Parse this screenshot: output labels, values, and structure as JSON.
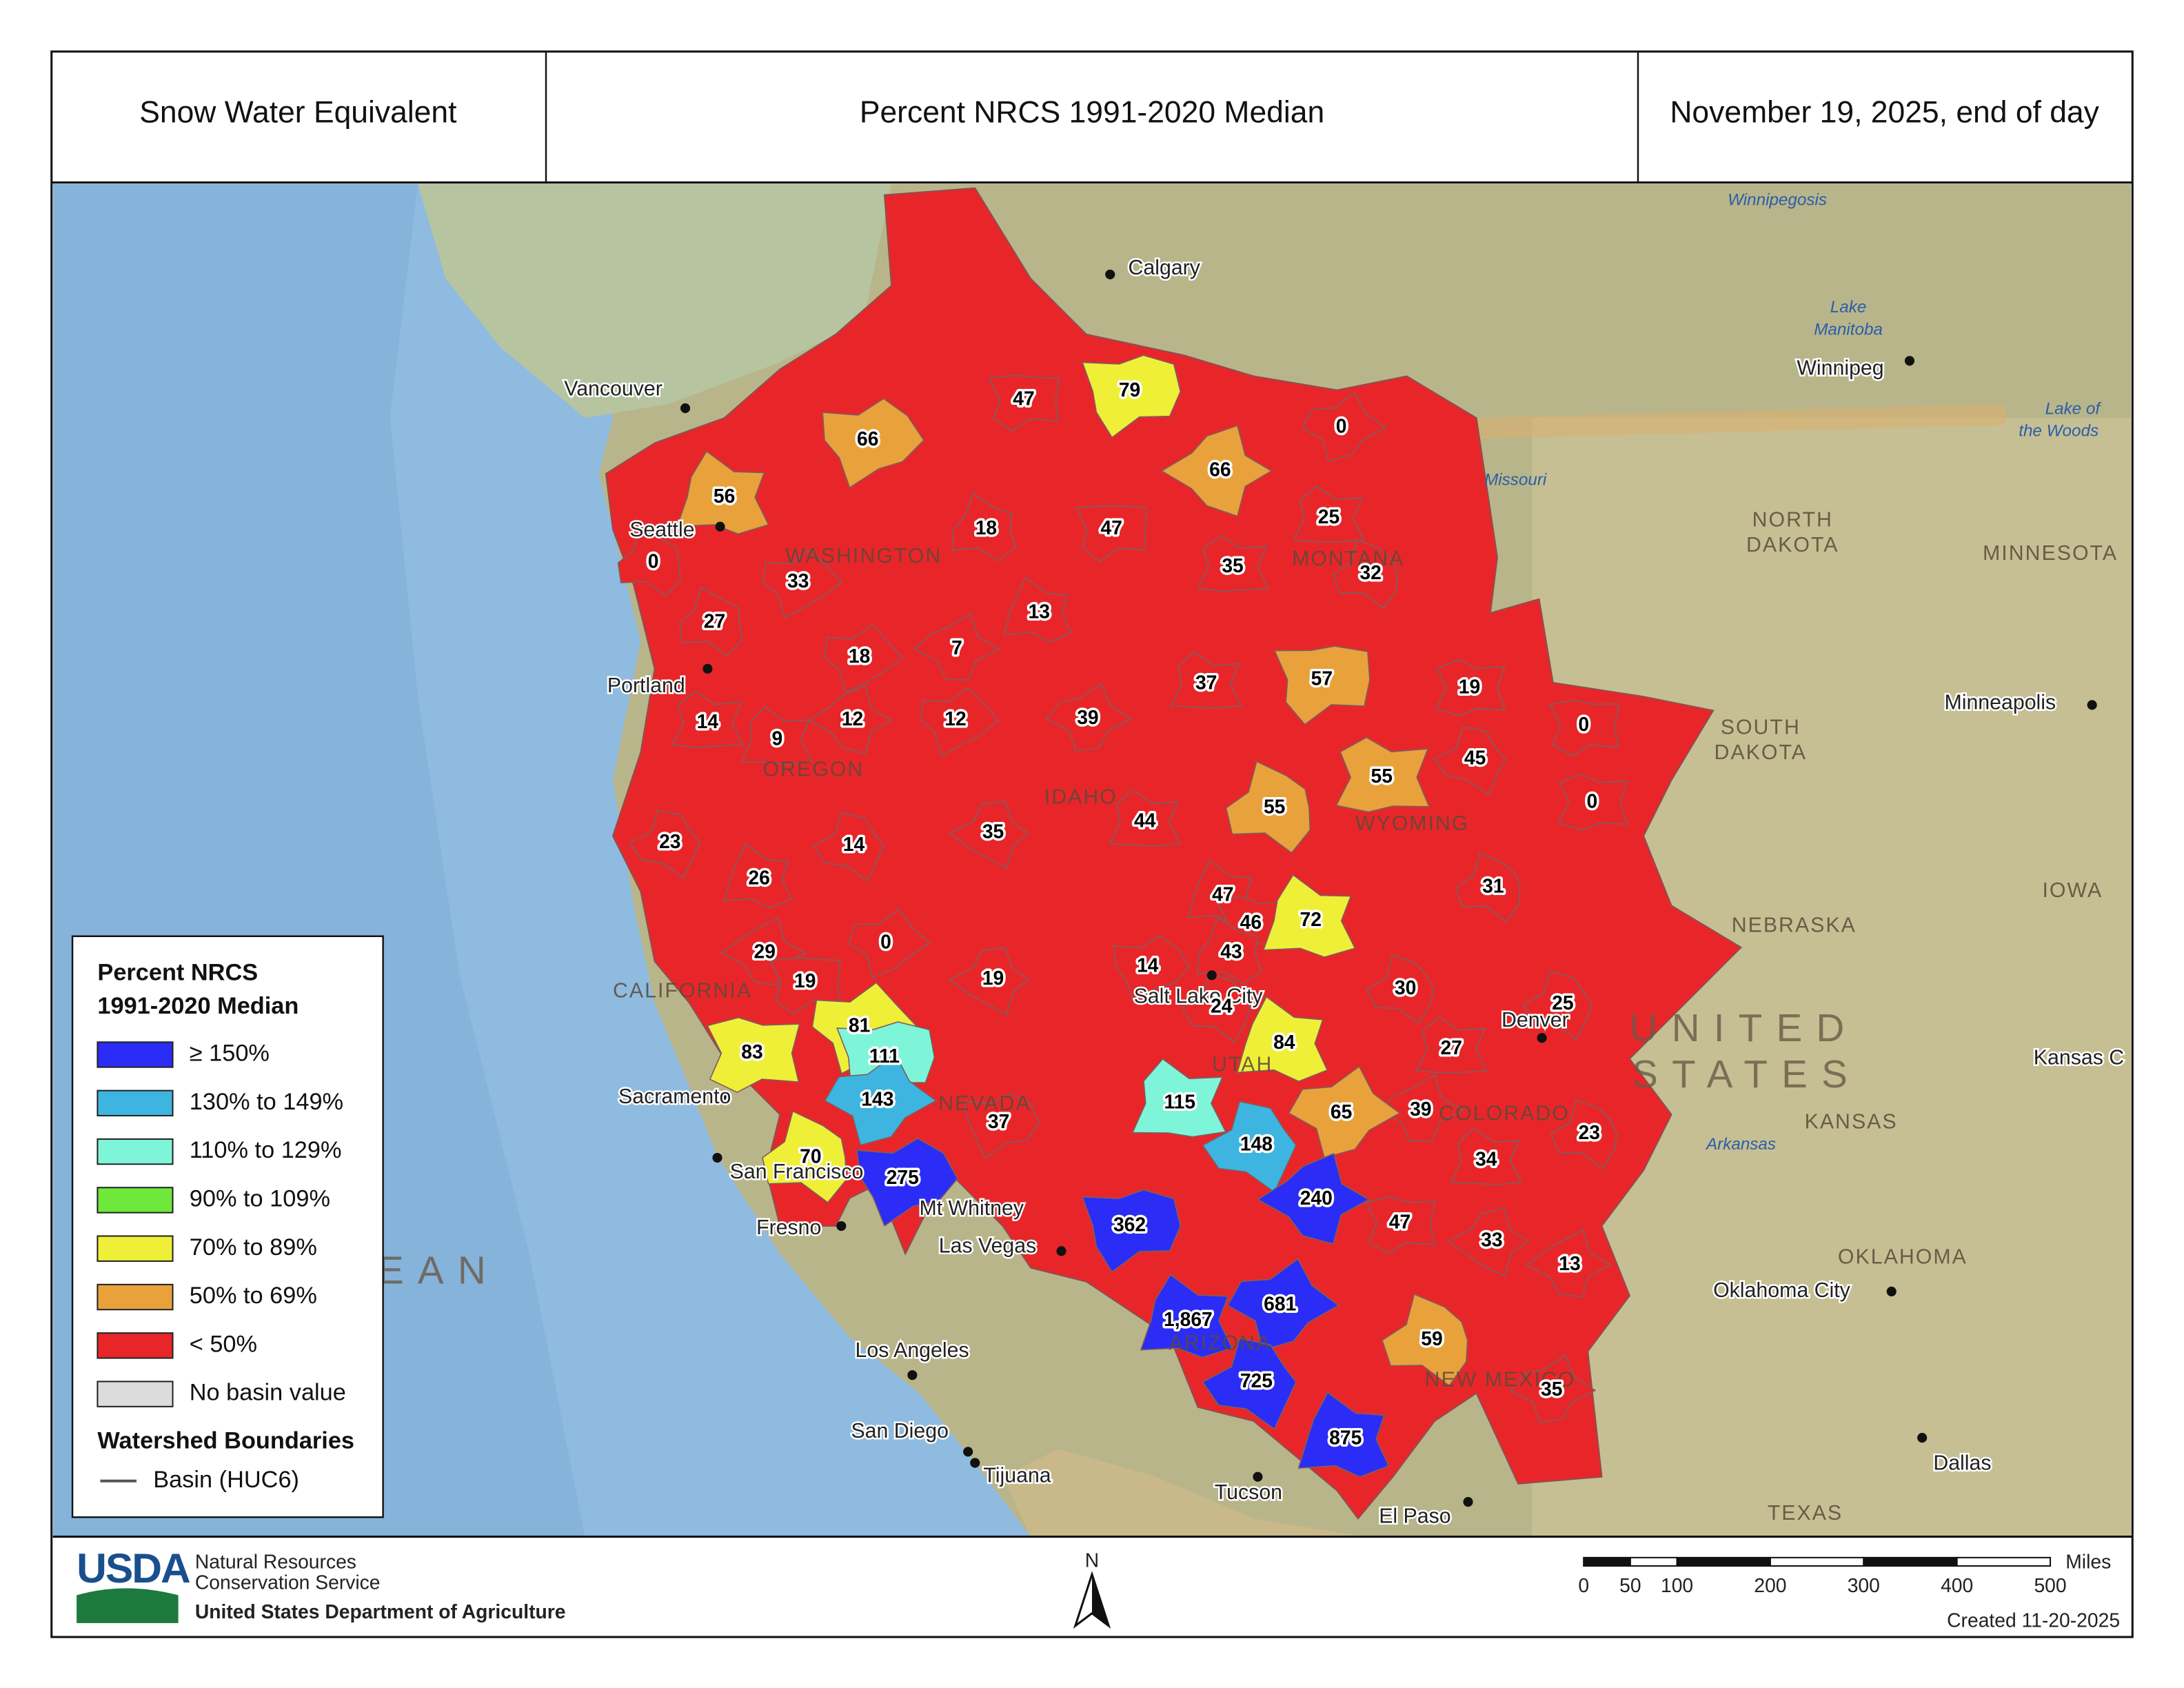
{
  "header": {
    "left": "Snow Water Equivalent",
    "center": "Percent NRCS 1991-2020 Median",
    "right": "November 19, 2025, end of day"
  },
  "legend": {
    "title_line1": "Percent NRCS",
    "title_line2": "1991-2020 Median",
    "classes": [
      {
        "label": "≥ 150%",
        "color": "#2b2cf5"
      },
      {
        "label": "130% to 149%",
        "color": "#3db5e0"
      },
      {
        "label": "110% to 129%",
        "color": "#7ef5d8"
      },
      {
        "label": "90% to 109%",
        "color": "#6ee83a"
      },
      {
        "label": "70% to 89%",
        "color": "#f0ef38"
      },
      {
        "label": "50% to 69%",
        "color": "#e9a23b"
      },
      {
        "label": "< 50%",
        "color": "#e8262a"
      },
      {
        "label": "No basin value",
        "color": "#dcdcdc"
      }
    ],
    "boundaries_title": "Watershed Boundaries",
    "boundary_label": "Basin (HUC6)"
  },
  "basins": [
    {
      "value": 47,
      "color": "#e8262a"
    },
    {
      "value": 79,
      "color": "#f0ef38"
    },
    {
      "value": 66,
      "color": "#e9a23b"
    },
    {
      "value": 0,
      "color": "#e8262a"
    },
    {
      "value": 66,
      "color": "#e9a23b"
    },
    {
      "value": 56,
      "color": "#e9a23b"
    },
    {
      "value": 0,
      "color": "#e8262a"
    },
    {
      "value": 18,
      "color": "#e8262a"
    },
    {
      "value": 47,
      "color": "#e8262a"
    },
    {
      "value": 25,
      "color": "#e8262a"
    },
    {
      "value": 35,
      "color": "#e8262a"
    },
    {
      "value": 32,
      "color": "#e8262a"
    },
    {
      "value": 33,
      "color": "#e8262a"
    },
    {
      "value": 27,
      "color": "#e8262a"
    },
    {
      "value": 13,
      "color": "#e8262a"
    },
    {
      "value": 18,
      "color": "#e8262a"
    },
    {
      "value": 7,
      "color": "#e8262a"
    },
    {
      "value": 37,
      "color": "#e8262a"
    },
    {
      "value": 57,
      "color": "#e9a23b"
    },
    {
      "value": 19,
      "color": "#e8262a"
    },
    {
      "value": 14,
      "color": "#e8262a"
    },
    {
      "value": 9,
      "color": "#e8262a"
    },
    {
      "value": 12,
      "color": "#e8262a"
    },
    {
      "value": 12,
      "color": "#e8262a"
    },
    {
      "value": 39,
      "color": "#e8262a"
    },
    {
      "value": 0,
      "color": "#e8262a"
    },
    {
      "value": 45,
      "color": "#e8262a"
    },
    {
      "value": 55,
      "color": "#e9a23b"
    },
    {
      "value": 0,
      "color": "#e8262a"
    },
    {
      "value": 55,
      "color": "#e9a23b"
    },
    {
      "value": 23,
      "color": "#e8262a"
    },
    {
      "value": 14,
      "color": "#e8262a"
    },
    {
      "value": 35,
      "color": "#e8262a"
    },
    {
      "value": 44,
      "color": "#e8262a"
    },
    {
      "value": 26,
      "color": "#e8262a"
    },
    {
      "value": 31,
      "color": "#e8262a"
    },
    {
      "value": 47,
      "color": "#e8262a"
    },
    {
      "value": 46,
      "color": "#e8262a"
    },
    {
      "value": 72,
      "color": "#f0ef38"
    },
    {
      "value": 0,
      "color": "#e8262a"
    },
    {
      "value": 29,
      "color": "#e8262a"
    },
    {
      "value": 43,
      "color": "#e8262a"
    },
    {
      "value": 19,
      "color": "#e8262a"
    },
    {
      "value": 19,
      "color": "#e8262a"
    },
    {
      "value": 14,
      "color": "#e8262a"
    },
    {
      "value": 30,
      "color": "#e8262a"
    },
    {
      "value": 24,
      "color": "#e8262a"
    },
    {
      "value": 25,
      "color": "#e8262a"
    },
    {
      "value": 81,
      "color": "#f0ef38"
    },
    {
      "value": 83,
      "color": "#f0ef38"
    },
    {
      "value": 111,
      "color": "#7ef5d8"
    },
    {
      "value": 84,
      "color": "#f0ef38"
    },
    {
      "value": 27,
      "color": "#e8262a"
    },
    {
      "value": 143,
      "color": "#3db5e0"
    },
    {
      "value": 115,
      "color": "#7ef5d8"
    },
    {
      "value": 65,
      "color": "#e9a23b"
    },
    {
      "value": 39,
      "color": "#e8262a"
    },
    {
      "value": 23,
      "color": "#e8262a"
    },
    {
      "value": 70,
      "color": "#f0ef38"
    },
    {
      "value": 37,
      "color": "#e8262a"
    },
    {
      "value": 148,
      "color": "#3db5e0"
    },
    {
      "value": 34,
      "color": "#e8262a"
    },
    {
      "value": 275,
      "color": "#2b2cf5"
    },
    {
      "value": 240,
      "color": "#2b2cf5"
    },
    {
      "value": 362,
      "color": "#2b2cf5"
    },
    {
      "value": 47,
      "color": "#e8262a"
    },
    {
      "value": 33,
      "color": "#e8262a"
    },
    {
      "value": 13,
      "color": "#e8262a"
    },
    {
      "value": 681,
      "color": "#2b2cf5"
    },
    {
      "value": 1867,
      "label": "1,867",
      "color": "#2b2cf5"
    },
    {
      "value": 59,
      "color": "#e9a23b"
    },
    {
      "value": 35,
      "color": "#e8262a"
    },
    {
      "value": 725,
      "color": "#2b2cf5"
    },
    {
      "value": 875,
      "color": "#2b2cf5"
    }
  ],
  "places": {
    "cities": [
      "Calgary",
      "Vancouver",
      "Seattle",
      "Portland",
      "Winnipeg",
      "Minneapolis",
      "Sacramento",
      "San Francisco",
      "Fresno",
      "Mt Whitney",
      "Las Vegas",
      "Los Angeles",
      "San Diego",
      "Tijuana",
      "Tucson",
      "El Paso",
      "Salt Lake City",
      "Denver",
      "Oklahoma City",
      "Dallas",
      "Kansas C"
    ],
    "states": [
      "WASHINGTON",
      "OREGON",
      "IDAHO",
      "MONTANA",
      "WYOMING",
      "NEVADA",
      "UTAH",
      "COLORADO",
      "ARIZONA",
      "NEW MEXICO",
      "CALIFORNIA",
      "NORTH",
      "DAKOTA",
      "SOUTH",
      "DAKOTA",
      "NEBRASKA",
      "KANSAS",
      "OKLAHOMA",
      "TEXAS",
      "IOWA",
      "MINNESOTA"
    ],
    "water": [
      "Winnipegosis",
      "Lake",
      "Manitoba",
      "Lake of",
      "the Woods",
      "Missouri",
      "Arkansas"
    ],
    "region": [
      "UNITED",
      "STATES",
      "EAN"
    ]
  },
  "scale_bar": {
    "unit": "Miles",
    "ticks": [
      0,
      50,
      100,
      200,
      300,
      400,
      500
    ]
  },
  "footer": {
    "agency": "USDA",
    "line1": "Natural Resources",
    "line2": "Conservation Service",
    "line3": "United States Department of Agriculture",
    "north": "N",
    "created": "Created 11-20-2025"
  }
}
